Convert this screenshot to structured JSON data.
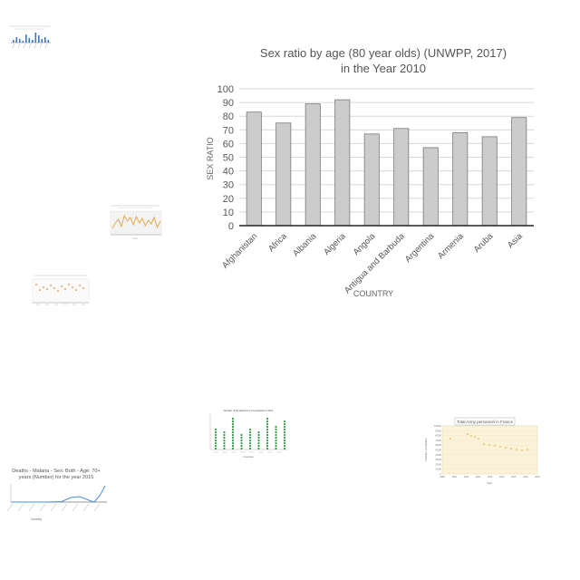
{
  "main": {
    "chart_data": {
      "type": "bar",
      "title_line1": "Sex ratio by age (80 year olds) (UNWPP, 2017)",
      "title_line2": "in the Year 2010",
      "xlabel": "COUNTRY",
      "ylabel": "SEX RATIO",
      "categories": [
        "Afghanistan",
        "Africa",
        "Albania",
        "Algeria",
        "Angola",
        "Antigua and Barbuda",
        "Argentina",
        "Armenia",
        "Aruba",
        "Asia"
      ],
      "values": [
        83,
        75,
        89,
        92,
        67,
        71,
        57,
        68,
        65,
        79
      ],
      "ylim": [
        0,
        100
      ],
      "yticks": [
        0,
        10,
        20,
        30,
        40,
        50,
        60,
        70,
        80,
        90,
        100
      ],
      "grid": true,
      "bar_fill": "#cccccc",
      "bar_stroke": "#777777"
    }
  },
  "thumbs": {
    "malaria": {
      "title_line1": "Deaths - Malaria - Sex: Both - Age: 70+",
      "title_line2": "years (Number) for the year 2015",
      "xlabel": "Country",
      "color": "#4a90d9"
    },
    "army": {
      "title": "Total Army personnel in France",
      "xlabel": "Year",
      "ylabel": "Number of soldiers",
      "yticks": [
        "100000",
        "90000",
        "80000",
        "70000",
        "60000",
        "50000",
        "40000",
        "30000",
        "20000",
        "10000",
        "0"
      ],
      "xticks": [
        "1985",
        "1990",
        "1995",
        "2000",
        "2005",
        "2010",
        "2015",
        "2020",
        "2025"
      ],
      "color": "#e3b84d",
      "background": "#fbf3d9"
    },
    "green": {
      "title": "Number of big lettuces by 1st semester in 2013",
      "xlabel": "Countries",
      "color": "#2e9e3f"
    },
    "bars_small": {
      "color": "#3a78c2"
    },
    "line_small": {
      "color": "#e3a33a"
    },
    "scatter_small": {
      "color": "#e38a3a"
    }
  }
}
